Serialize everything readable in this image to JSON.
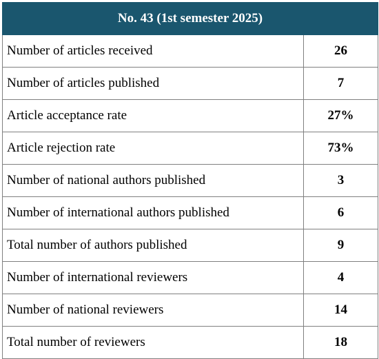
{
  "table": {
    "header": "No. 43 (1st semester 2025)",
    "rows": [
      {
        "label": "Number of articles received",
        "value": "26"
      },
      {
        "label": "Number of articles published",
        "value": "7"
      },
      {
        "label": "Article acceptance rate",
        "value": "27%"
      },
      {
        "label": "Article rejection rate",
        "value": "73%"
      },
      {
        "label": "Number of national authors published",
        "value": "3"
      },
      {
        "label": "Number of international authors published",
        "value": "6"
      },
      {
        "label": "Total number of authors published",
        "value": "9"
      },
      {
        "label": "Number of international reviewers",
        "value": "4"
      },
      {
        "label": "Number of national reviewers",
        "value": "14"
      },
      {
        "label": "Total number of reviewers",
        "value": "18"
      }
    ],
    "colors": {
      "header_background": "#1a566e",
      "header_text": "#ffffff",
      "border": "#7f7f7f"
    }
  }
}
